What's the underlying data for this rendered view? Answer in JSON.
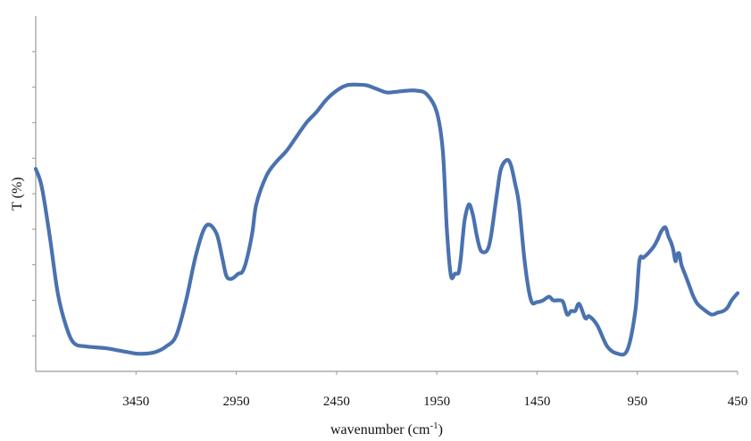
{
  "chart_data": {
    "type": "line",
    "title": "",
    "xlabel": "wavenumber (cm",
    "xlabel_superscript": "-1",
    "xlabel_suffix": ")",
    "ylabel": "T (%)",
    "xlim": [
      3950,
      450
    ],
    "ylim": [
      0,
      100
    ],
    "x_reversed": true,
    "x_ticks": [
      3450,
      2950,
      2450,
      1950,
      1450,
      950,
      450
    ],
    "x_tick_labels": [
      "3450",
      "2950",
      "2450",
      "1950",
      "1450",
      "950",
      "450"
    ],
    "y_tick_count": 9,
    "y_tick_labels_shown": false,
    "grid": false,
    "legend": "none",
    "series": [
      {
        "color": "#4a72b0",
        "x": [
          3950,
          3920,
          3880,
          3840,
          3800,
          3760,
          3700,
          3600,
          3500,
          3450,
          3400,
          3350,
          3300,
          3250,
          3200,
          3150,
          3100,
          3050,
          3020,
          3000,
          2980,
          2960,
          2950,
          2940,
          2920,
          2900,
          2870,
          2850,
          2800,
          2750,
          2700,
          2650,
          2600,
          2550,
          2500,
          2450,
          2400,
          2350,
          2300,
          2250,
          2200,
          2150,
          2100,
          2050,
          2000,
          1950,
          1920,
          1900,
          1880,
          1860,
          1850,
          1840,
          1830,
          1820,
          1810,
          1790,
          1770,
          1750,
          1730,
          1700,
          1680,
          1650,
          1630,
          1600,
          1580,
          1560,
          1540,
          1510,
          1480,
          1450,
          1420,
          1390,
          1370,
          1340,
          1320,
          1300,
          1280,
          1260,
          1240,
          1210,
          1190,
          1150,
          1100,
          1050,
          1000,
          960,
          940,
          920,
          900,
          870,
          850,
          830,
          810,
          795,
          780,
          770,
          760,
          750,
          740,
          730,
          710,
          690,
          670,
          650,
          620,
          580,
          550,
          520,
          500,
          480,
          450
        ],
        "y": [
          57,
          52,
          38,
          22,
          13,
          8,
          7,
          6.5,
          5.5,
          5,
          5,
          5.5,
          7,
          10,
          20,
          33,
          41,
          39,
          32,
          27,
          26,
          26.5,
          27,
          27.5,
          28,
          31,
          39,
          47,
          55,
          59,
          62,
          66,
          70,
          73,
          76.5,
          79,
          80.5,
          80.7,
          80.5,
          79.5,
          78.5,
          78.7,
          79,
          79,
          78,
          73,
          62,
          40,
          27,
          27.5,
          27.5,
          28,
          32,
          38,
          43,
          47,
          44,
          38,
          34,
          34,
          38,
          50,
          57,
          59.5,
          58,
          53,
          47,
          30,
          20,
          19.5,
          20,
          21,
          20,
          20,
          19.5,
          16,
          17,
          17,
          19,
          15,
          15.5,
          13,
          7,
          5,
          6,
          17,
          31,
          32,
          33,
          35,
          37,
          39.5,
          40.5,
          38,
          36,
          34,
          31,
          33,
          33,
          30,
          27,
          24,
          21,
          19,
          17.5,
          16,
          16.5,
          17,
          18,
          20,
          22
        ]
      }
    ]
  }
}
